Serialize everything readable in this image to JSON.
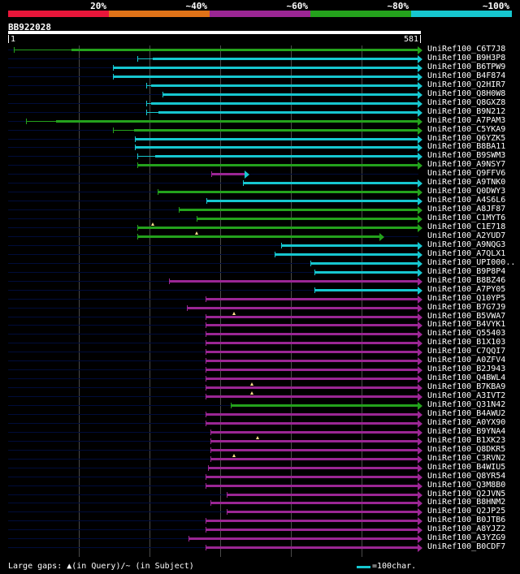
{
  "identity_legend": {
    "labels": [
      "20%",
      "~40%",
      "~60%",
      "~80%",
      "~100%"
    ],
    "colors": [
      "#e8163a",
      "#e07318",
      "#9b2694",
      "#24a21c",
      "#16c7d0"
    ]
  },
  "query": {
    "id": "BB922028",
    "start_label": "1",
    "end_label": "581",
    "length": 581
  },
  "colors": {
    "cyan": "#16c7d0",
    "green": "#24a21c",
    "purple": "#9b2694",
    "background": "#000000",
    "gap_marker": "#ffe08a"
  },
  "hits": [
    {
      "label": "UniRef100_C6T7J8",
      "color": "green",
      "start": 8,
      "end": 581,
      "thin_until": 90
    },
    {
      "label": "UniRef100_B9H3P8",
      "color": "cyan",
      "start": 183,
      "end": 581,
      "thin_until": 205
    },
    {
      "label": "UniRef100_B6TPW9",
      "color": "cyan",
      "start": 148,
      "end": 581
    },
    {
      "label": "UniRef100_B4F874",
      "color": "cyan",
      "start": 148,
      "end": 581
    },
    {
      "label": "UniRef100_Q2HIR7",
      "color": "cyan",
      "start": 196,
      "end": 581,
      "thin_until": 203
    },
    {
      "label": "UniRef100_Q8H0W8",
      "color": "cyan",
      "start": 219,
      "end": 581
    },
    {
      "label": "UniRef100_Q8GXZ8",
      "color": "cyan",
      "start": 196,
      "end": 581,
      "thin_until": 203
    },
    {
      "label": "UniRef100_B9N212",
      "color": "cyan",
      "start": 196,
      "end": 581,
      "thin_until": 213
    },
    {
      "label": "UniRef100_A7PAM3",
      "color": "green",
      "start": 25,
      "end": 581,
      "thin_until": 68
    },
    {
      "label": "UniRef100_C5YKA9",
      "color": "green",
      "start": 148,
      "end": 581,
      "thin_until": 178
    },
    {
      "label": "UniRef100_Q6YZK5",
      "color": "cyan",
      "start": 180,
      "end": 581
    },
    {
      "label": "UniRef100_B8BA11",
      "color": "cyan",
      "start": 180,
      "end": 581
    },
    {
      "label": "UniRef100_B9SWM3",
      "color": "cyan",
      "start": 183,
      "end": 581,
      "thin_until": 208
    },
    {
      "label": "UniRef100_A9NSY7",
      "color": "green",
      "start": 183,
      "end": 581
    },
    {
      "label": "UniRef100_Q9FFV6",
      "color": "purple",
      "start": 288,
      "end": 336,
      "tail_color": "cyan"
    },
    {
      "label": "UniRef100_A9TNK0",
      "color": "cyan",
      "start": 332,
      "end": 581
    },
    {
      "label": "UniRef100_Q0DWY3",
      "color": "green",
      "start": 212,
      "end": 581
    },
    {
      "label": "UniRef100_A4S6L6",
      "color": "cyan",
      "start": 281,
      "end": 581
    },
    {
      "label": "UniRef100_A8JF87",
      "color": "green",
      "start": 242,
      "end": 581
    },
    {
      "label": "UniRef100_C1MYT6",
      "color": "green",
      "start": 267,
      "end": 581
    },
    {
      "label": "UniRef100_C1E718",
      "color": "green",
      "start": 183,
      "end": 581,
      "gaps": [
        205
      ]
    },
    {
      "label": "UniRef100_A2YUD7",
      "color": "green",
      "start": 183,
      "end": 527,
      "gaps": [
        267
      ]
    },
    {
      "label": "UniRef100_A9NQG3",
      "color": "cyan",
      "start": 387,
      "end": 581
    },
    {
      "label": "UniRef100_A7QLX1",
      "color": "cyan",
      "start": 377,
      "end": 581
    },
    {
      "label": "UniRef100_UPI000..",
      "color": "cyan",
      "start": 428,
      "end": 581
    },
    {
      "label": "UniRef100_B9P8P4",
      "color": "cyan",
      "start": 434,
      "end": 581
    },
    {
      "label": "UniRef100_B8BZ46",
      "color": "purple",
      "start": 228,
      "end": 581,
      "thick_from": 455
    },
    {
      "label": "UniRef100_A7PY05",
      "color": "cyan",
      "start": 434,
      "end": 581
    },
    {
      "label": "UniRef100_Q10YP5",
      "color": "purple",
      "start": 280,
      "end": 581
    },
    {
      "label": "UniRef100_B7G7J9",
      "color": "purple",
      "start": 253,
      "end": 581
    },
    {
      "label": "UniRef100_B5VWA7",
      "color": "purple",
      "start": 280,
      "end": 581,
      "gaps": [
        320
      ]
    },
    {
      "label": "UniRef100_B4VYK1",
      "color": "purple",
      "start": 280,
      "end": 581
    },
    {
      "label": "UniRef100_Q55403",
      "color": "purple",
      "start": 280,
      "end": 581
    },
    {
      "label": "UniRef100_B1X103",
      "color": "purple",
      "start": 280,
      "end": 581
    },
    {
      "label": "UniRef100_C7QQI7",
      "color": "purple",
      "start": 280,
      "end": 581
    },
    {
      "label": "UniRef100_A0ZFV4",
      "color": "purple",
      "start": 280,
      "end": 581
    },
    {
      "label": "UniRef100_B2J943",
      "color": "purple",
      "start": 280,
      "end": 581
    },
    {
      "label": "UniRef100_Q4BWL4",
      "color": "purple",
      "start": 280,
      "end": 581
    },
    {
      "label": "UniRef100_B7KBA9",
      "color": "purple",
      "start": 280,
      "end": 581,
      "gaps": [
        345
      ]
    },
    {
      "label": "UniRef100_A3IVT2",
      "color": "purple",
      "start": 280,
      "end": 581,
      "gaps": [
        345
      ]
    },
    {
      "label": "UniRef100_Q31N42",
      "color": "green",
      "start": 315,
      "end": 581
    },
    {
      "label": "UniRef100_B4AWU2",
      "color": "purple",
      "start": 280,
      "end": 581
    },
    {
      "label": "UniRef100_A0YX90",
      "color": "purple",
      "start": 280,
      "end": 581
    },
    {
      "label": "UniRef100_B9YNA4",
      "color": "purple",
      "start": 286,
      "end": 581
    },
    {
      "label": "UniRef100_B1XK23",
      "color": "purple",
      "start": 286,
      "end": 581,
      "gaps": [
        353
      ]
    },
    {
      "label": "UniRef100_Q8DKR5",
      "color": "purple",
      "start": 286,
      "end": 581
    },
    {
      "label": "UniRef100_C3RVN2",
      "color": "purple",
      "start": 286,
      "end": 581,
      "gaps": [
        320
      ]
    },
    {
      "label": "UniRef100_B4WIU5",
      "color": "purple",
      "start": 283,
      "end": 581
    },
    {
      "label": "UniRef100_Q8YR54",
      "color": "purple",
      "start": 280,
      "end": 581
    },
    {
      "label": "UniRef100_Q3M8B0",
      "color": "purple",
      "start": 280,
      "end": 581
    },
    {
      "label": "UniRef100_Q2JVN5",
      "color": "purple",
      "start": 309,
      "end": 581
    },
    {
      "label": "UniRef100_B8HNM2",
      "color": "purple",
      "start": 286,
      "end": 581
    },
    {
      "label": "UniRef100_Q2JP25",
      "color": "purple",
      "start": 309,
      "end": 581
    },
    {
      "label": "UniRef100_B0JTB6",
      "color": "purple",
      "start": 280,
      "end": 581
    },
    {
      "label": "UniRef100_A8YJZ2",
      "color": "purple",
      "start": 280,
      "end": 581
    },
    {
      "label": "UniRef100_A3YZG9",
      "color": "purple",
      "start": 255,
      "end": 581
    },
    {
      "label": "UniRef100_B0CDF7",
      "color": "purple",
      "start": 280,
      "end": 581
    }
  ],
  "footer": {
    "large_gaps_text": "Large gaps: ▲(in Query)/~ (in Subject)",
    "scale_text": "=100char."
  }
}
